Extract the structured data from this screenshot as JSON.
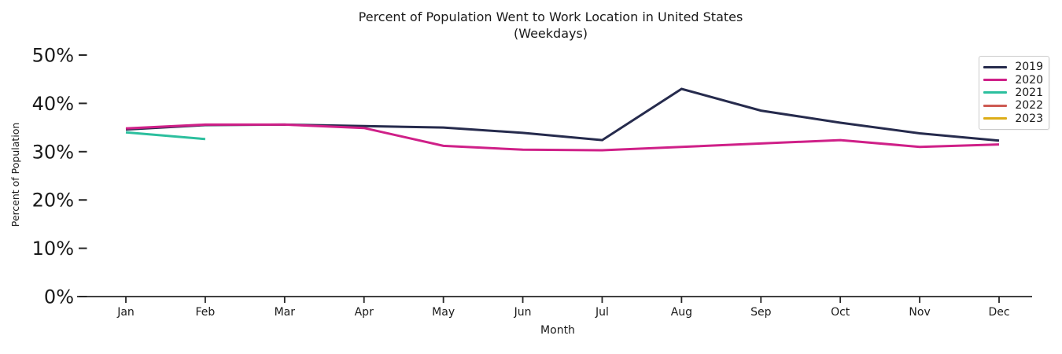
{
  "chart_data": {
    "type": "line",
    "title_lines": [
      "Percent of Population Went to Work Location in United States",
      "(Weekdays)"
    ],
    "xlabel": "Month",
    "ylabel": "Percent of Population",
    "categories": [
      "Jan",
      "Feb",
      "Mar",
      "Apr",
      "May",
      "Jun",
      "Jul",
      "Aug",
      "Sep",
      "Oct",
      "Nov",
      "Dec"
    ],
    "ylim": [
      0,
      50
    ],
    "yticks": [
      0,
      10,
      20,
      30,
      40,
      50
    ],
    "ytick_suffix": "%",
    "grid": false,
    "legend_position": "upper right",
    "series": [
      {
        "name": "2019",
        "color": "#262b4d",
        "values": [
          34.6,
          35.5,
          35.6,
          35.3,
          35.0,
          33.9,
          32.4,
          43.0,
          38.5,
          36.0,
          33.8,
          32.3
        ]
      },
      {
        "name": "2020",
        "color": "#cf2088",
        "values": [
          34.8,
          35.6,
          35.6,
          34.9,
          31.2,
          30.4,
          30.3,
          31.0,
          31.7,
          32.4,
          31.0,
          31.5
        ]
      },
      {
        "name": "2021",
        "color": "#2cbf9e",
        "values": [
          34.0,
          32.6,
          null,
          null,
          null,
          null,
          null,
          null,
          null,
          null,
          null,
          null
        ]
      },
      {
        "name": "2022",
        "color": "#cd5a52",
        "values": [
          null,
          null,
          null,
          null,
          null,
          null,
          null,
          null,
          null,
          null,
          null,
          null
        ]
      },
      {
        "name": "2023",
        "color": "#ddad18",
        "values": [
          null,
          null,
          null,
          null,
          null,
          null,
          null,
          null,
          null,
          null,
          null,
          null
        ]
      }
    ]
  }
}
